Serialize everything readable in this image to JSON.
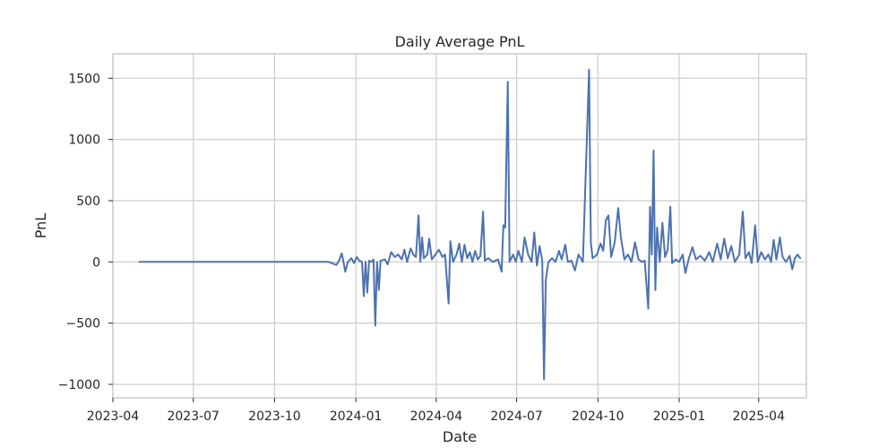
{
  "chart_data": {
    "type": "line",
    "title": "Daily Average PnL",
    "xlabel": "Date",
    "ylabel": "PnL",
    "grid": true,
    "xlim": [
      "2023-04-01",
      "2025-05-25"
    ],
    "ylim": [
      -1110,
      1700
    ],
    "x_ticks": [
      {
        "date": "2023-04-01",
        "label": "2023-04"
      },
      {
        "date": "2023-07-01",
        "label": "2023-07"
      },
      {
        "date": "2023-10-01",
        "label": "2023-10"
      },
      {
        "date": "2024-01-01",
        "label": "2024-01"
      },
      {
        "date": "2024-04-01",
        "label": "2024-04"
      },
      {
        "date": "2024-07-01",
        "label": "2024-07"
      },
      {
        "date": "2024-10-01",
        "label": "2024-10"
      },
      {
        "date": "2025-01-01",
        "label": "2025-01"
      },
      {
        "date": "2025-04-01",
        "label": "2025-04"
      }
    ],
    "y_ticks": [
      {
        "value": 1500,
        "label": "1500"
      },
      {
        "value": 1000,
        "label": "1000"
      },
      {
        "value": 500,
        "label": "500"
      },
      {
        "value": 0,
        "label": "0"
      },
      {
        "value": -500,
        "label": "−500"
      },
      {
        "value": -1000,
        "label": "−1000"
      }
    ],
    "series": [
      {
        "name": "Daily Average PnL",
        "color": "#4c72b0",
        "points": [
          [
            "2023-05-01",
            0
          ],
          [
            "2023-12-01",
            0
          ],
          [
            "2023-12-05",
            -10
          ],
          [
            "2023-12-10",
            -25
          ],
          [
            "2023-12-13",
            10
          ],
          [
            "2023-12-16",
            70
          ],
          [
            "2023-12-18",
            0
          ],
          [
            "2023-12-20",
            -80
          ],
          [
            "2023-12-23",
            0
          ],
          [
            "2023-12-27",
            30
          ],
          [
            "2023-12-30",
            -10
          ],
          [
            "2024-01-02",
            40
          ],
          [
            "2024-01-05",
            10
          ],
          [
            "2024-01-08",
            0
          ],
          [
            "2024-01-10",
            -280
          ],
          [
            "2024-01-12",
            0
          ],
          [
            "2024-01-14",
            -250
          ],
          [
            "2024-01-16",
            10
          ],
          [
            "2024-01-19",
            0
          ],
          [
            "2024-01-21",
            20
          ],
          [
            "2024-01-23",
            -520
          ],
          [
            "2024-01-25",
            0
          ],
          [
            "2024-01-27",
            -230
          ],
          [
            "2024-01-29",
            10
          ],
          [
            "2024-02-03",
            20
          ],
          [
            "2024-02-06",
            -20
          ],
          [
            "2024-02-10",
            80
          ],
          [
            "2024-02-14",
            40
          ],
          [
            "2024-02-18",
            60
          ],
          [
            "2024-02-22",
            20
          ],
          [
            "2024-02-25",
            100
          ],
          [
            "2024-02-28",
            0
          ],
          [
            "2024-03-03",
            110
          ],
          [
            "2024-03-06",
            60
          ],
          [
            "2024-03-09",
            40
          ],
          [
            "2024-03-12",
            380
          ],
          [
            "2024-03-14",
            0
          ],
          [
            "2024-03-16",
            200
          ],
          [
            "2024-03-18",
            30
          ],
          [
            "2024-03-22",
            60
          ],
          [
            "2024-03-24",
            190
          ],
          [
            "2024-03-27",
            20
          ],
          [
            "2024-03-31",
            60
          ],
          [
            "2024-04-04",
            100
          ],
          [
            "2024-04-08",
            40
          ],
          [
            "2024-04-11",
            60
          ],
          [
            "2024-04-15",
            -340
          ],
          [
            "2024-04-17",
            170
          ],
          [
            "2024-04-20",
            0
          ],
          [
            "2024-04-24",
            60
          ],
          [
            "2024-04-27",
            150
          ],
          [
            "2024-04-30",
            0
          ],
          [
            "2024-05-03",
            140
          ],
          [
            "2024-05-06",
            30
          ],
          [
            "2024-05-09",
            80
          ],
          [
            "2024-05-12",
            0
          ],
          [
            "2024-05-15",
            90
          ],
          [
            "2024-05-18",
            20
          ],
          [
            "2024-05-21",
            50
          ],
          [
            "2024-05-24",
            410
          ],
          [
            "2024-05-26",
            10
          ],
          [
            "2024-05-30",
            30
          ],
          [
            "2024-06-04",
            0
          ],
          [
            "2024-06-10",
            20
          ],
          [
            "2024-06-14",
            -80
          ],
          [
            "2024-06-16",
            300
          ],
          [
            "2024-06-18",
            280
          ],
          [
            "2024-06-21",
            1470
          ],
          [
            "2024-06-23",
            0
          ],
          [
            "2024-06-27",
            60
          ],
          [
            "2024-06-30",
            0
          ],
          [
            "2024-07-03",
            90
          ],
          [
            "2024-07-07",
            0
          ],
          [
            "2024-07-10",
            200
          ],
          [
            "2024-07-14",
            60
          ],
          [
            "2024-07-18",
            0
          ],
          [
            "2024-07-21",
            240
          ],
          [
            "2024-07-24",
            -30
          ],
          [
            "2024-07-27",
            130
          ],
          [
            "2024-07-30",
            10
          ],
          [
            "2024-08-01",
            -960
          ],
          [
            "2024-08-03",
            -150
          ],
          [
            "2024-08-06",
            0
          ],
          [
            "2024-08-10",
            30
          ],
          [
            "2024-08-14",
            0
          ],
          [
            "2024-08-18",
            90
          ],
          [
            "2024-08-21",
            20
          ],
          [
            "2024-08-25",
            140
          ],
          [
            "2024-08-28",
            0
          ],
          [
            "2024-09-01",
            10
          ],
          [
            "2024-09-05",
            -70
          ],
          [
            "2024-09-09",
            60
          ],
          [
            "2024-09-14",
            0
          ],
          [
            "2024-09-21",
            1570
          ],
          [
            "2024-09-23",
            160
          ],
          [
            "2024-09-25",
            30
          ],
          [
            "2024-09-30",
            60
          ],
          [
            "2024-10-04",
            150
          ],
          [
            "2024-10-07",
            90
          ],
          [
            "2024-10-10",
            340
          ],
          [
            "2024-10-13",
            380
          ],
          [
            "2024-10-16",
            40
          ],
          [
            "2024-10-20",
            160
          ],
          [
            "2024-10-24",
            440
          ],
          [
            "2024-10-27",
            200
          ],
          [
            "2024-10-31",
            20
          ],
          [
            "2024-11-04",
            60
          ],
          [
            "2024-11-08",
            0
          ],
          [
            "2024-11-12",
            160
          ],
          [
            "2024-11-16",
            20
          ],
          [
            "2024-11-20",
            0
          ],
          [
            "2024-11-23",
            10
          ],
          [
            "2024-11-27",
            -380
          ],
          [
            "2024-11-29",
            450
          ],
          [
            "2024-12-01",
            60
          ],
          [
            "2024-12-03",
            910
          ],
          [
            "2024-12-05",
            -230
          ],
          [
            "2024-12-07",
            280
          ],
          [
            "2024-12-10",
            0
          ],
          [
            "2024-12-13",
            320
          ],
          [
            "2024-12-16",
            40
          ],
          [
            "2024-12-19",
            100
          ],
          [
            "2024-12-22",
            450
          ],
          [
            "2024-12-24",
            -10
          ],
          [
            "2024-12-28",
            20
          ],
          [
            "2025-01-01",
            0
          ],
          [
            "2025-01-05",
            60
          ],
          [
            "2025-01-08",
            -90
          ],
          [
            "2025-01-12",
            30
          ],
          [
            "2025-01-16",
            120
          ],
          [
            "2025-01-20",
            20
          ],
          [
            "2025-01-25",
            50
          ],
          [
            "2025-01-30",
            10
          ],
          [
            "2025-02-04",
            80
          ],
          [
            "2025-02-08",
            0
          ],
          [
            "2025-02-13",
            150
          ],
          [
            "2025-02-17",
            20
          ],
          [
            "2025-02-21",
            190
          ],
          [
            "2025-02-25",
            30
          ],
          [
            "2025-03-01",
            130
          ],
          [
            "2025-03-05",
            0
          ],
          [
            "2025-03-10",
            60
          ],
          [
            "2025-03-14",
            410
          ],
          [
            "2025-03-17",
            30
          ],
          [
            "2025-03-21",
            80
          ],
          [
            "2025-03-24",
            -10
          ],
          [
            "2025-03-28",
            300
          ],
          [
            "2025-03-31",
            0
          ],
          [
            "2025-04-04",
            80
          ],
          [
            "2025-04-08",
            20
          ],
          [
            "2025-04-12",
            60
          ],
          [
            "2025-04-15",
            0
          ],
          [
            "2025-04-18",
            180
          ],
          [
            "2025-04-21",
            20
          ],
          [
            "2025-04-25",
            200
          ],
          [
            "2025-04-28",
            40
          ],
          [
            "2025-05-02",
            0
          ],
          [
            "2025-05-06",
            50
          ],
          [
            "2025-05-09",
            -60
          ],
          [
            "2025-05-12",
            30
          ],
          [
            "2025-05-15",
            60
          ],
          [
            "2025-05-18",
            30
          ]
        ]
      }
    ]
  }
}
